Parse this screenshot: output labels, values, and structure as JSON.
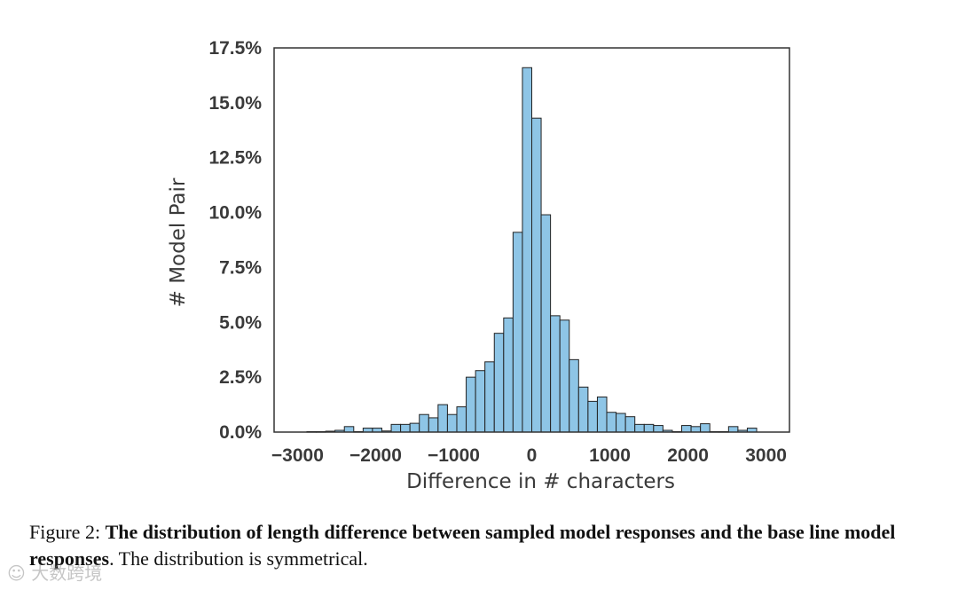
{
  "colors": {
    "bar_fill": "#8ec5e6",
    "bar_stroke": "#222222",
    "frame": "#333333",
    "text": "#3a3a3a"
  },
  "chart_data": {
    "type": "bar",
    "title": "",
    "xlabel": "Difference in # characters",
    "ylabel": "# Model Pair",
    "xlim": [
      -3300,
      3300
    ],
    "ylim": [
      0,
      17.5
    ],
    "grid": false,
    "bin_width": 120,
    "x_ticks": [
      -3000,
      -2000,
      -1000,
      0,
      1000,
      2000,
      3000
    ],
    "x_tick_labels": [
      "−3000",
      "−2000",
      "−1000",
      "0",
      "1000",
      "2000",
      "3000"
    ],
    "y_ticks": [
      0,
      2.5,
      5,
      7.5,
      10,
      12.5,
      15,
      17.5
    ],
    "y_tick_labels": [
      "0.0%",
      "2.5%",
      "5.0%",
      "7.5%",
      "10.0%",
      "12.5%",
      "15.0%",
      "17.5%"
    ],
    "bins": [
      {
        "x": -2880,
        "value": 0.02
      },
      {
        "x": -2760,
        "value": 0.02
      },
      {
        "x": -2640,
        "value": 0.04
      },
      {
        "x": -2520,
        "value": 0.08
      },
      {
        "x": -2400,
        "value": 0.25
      },
      {
        "x": -2280,
        "value": 0.02
      },
      {
        "x": -2160,
        "value": 0.18
      },
      {
        "x": -2040,
        "value": 0.18
      },
      {
        "x": -1920,
        "value": 0.05
      },
      {
        "x": -1800,
        "value": 0.35
      },
      {
        "x": -1680,
        "value": 0.35
      },
      {
        "x": -1560,
        "value": 0.4
      },
      {
        "x": -1440,
        "value": 0.8
      },
      {
        "x": -1320,
        "value": 0.65
      },
      {
        "x": -1200,
        "value": 1.25
      },
      {
        "x": -1080,
        "value": 0.8
      },
      {
        "x": -960,
        "value": 1.15
      },
      {
        "x": -840,
        "value": 2.5
      },
      {
        "x": -720,
        "value": 2.8
      },
      {
        "x": -600,
        "value": 3.2
      },
      {
        "x": -480,
        "value": 4.5
      },
      {
        "x": -360,
        "value": 5.2
      },
      {
        "x": -240,
        "value": 9.1
      },
      {
        "x": -120,
        "value": 16.6
      },
      {
        "x": 0,
        "value": 14.3
      },
      {
        "x": 120,
        "value": 9.9
      },
      {
        "x": 240,
        "value": 5.3
      },
      {
        "x": 360,
        "value": 5.1
      },
      {
        "x": 480,
        "value": 3.3
      },
      {
        "x": 600,
        "value": 2.05
      },
      {
        "x": 720,
        "value": 1.4
      },
      {
        "x": 840,
        "value": 1.6
      },
      {
        "x": 960,
        "value": 0.9
      },
      {
        "x": 1080,
        "value": 0.85
      },
      {
        "x": 1200,
        "value": 0.7
      },
      {
        "x": 1320,
        "value": 0.35
      },
      {
        "x": 1440,
        "value": 0.35
      },
      {
        "x": 1560,
        "value": 0.3
      },
      {
        "x": 1680,
        "value": 0.08
      },
      {
        "x": 1800,
        "value": 0.02
      },
      {
        "x": 1920,
        "value": 0.3
      },
      {
        "x": 2040,
        "value": 0.25
      },
      {
        "x": 2160,
        "value": 0.38
      },
      {
        "x": 2280,
        "value": 0.02
      },
      {
        "x": 2400,
        "value": 0.02
      },
      {
        "x": 2520,
        "value": 0.25
      },
      {
        "x": 2640,
        "value": 0.08
      },
      {
        "x": 2760,
        "value": 0.18
      }
    ]
  },
  "caption": {
    "prefix": "Figure 2: ",
    "bold": "The distribution of length difference between sampled model responses and the base line model responses",
    "rest": ". The distribution is symmetrical."
  },
  "watermark": "大数跨境"
}
